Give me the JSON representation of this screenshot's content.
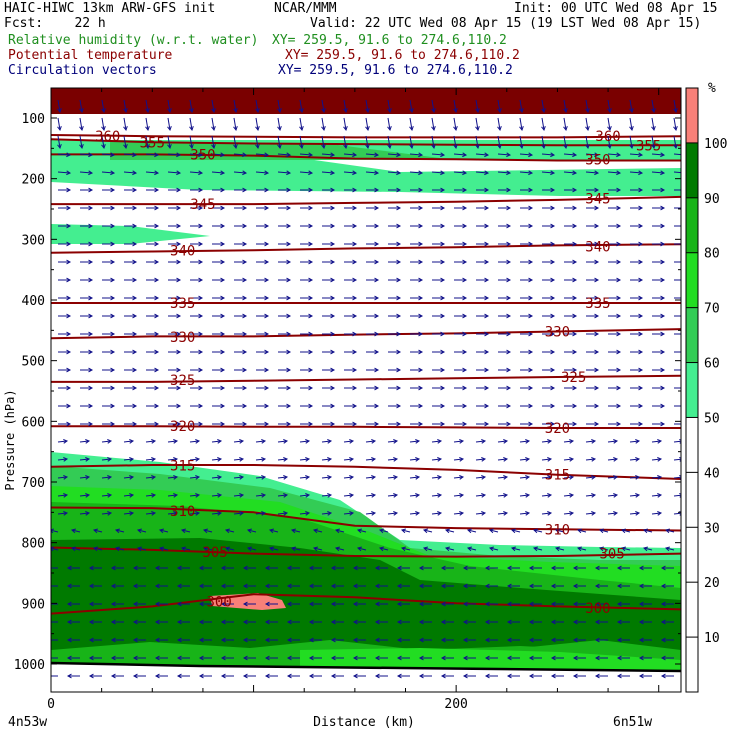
{
  "header": {
    "line1_left": "HAIC-HIWC 13km ARW-GFS init",
    "line1_center": "NCAR/MMM",
    "line1_right": "Init: 00 UTC Wed 08 Apr 15",
    "line2_left": "Fcst:    22 h",
    "line2_right": "Valid: 22 UTC Wed 08 Apr 15 (19 LST Wed 08 Apr 15)",
    "field1": "Relative humidity (w.r.t. water)",
    "field1_xy": "XY= 259.5, 91.6 to 274.6,110.2",
    "field2": "Potential temperature",
    "field2_xy": "XY= 259.5, 91.6 to 274.6,110.2",
    "field3": "Circulation vectors",
    "field3_xy": "XY= 259.5, 91.6 to 274.6,110.2",
    "field1_color": "#1f8f1f",
    "field2_color": "#8b0000",
    "field3_color": "#00007a"
  },
  "chart_data": {
    "type": "contour cross-section",
    "xlabel": "Distance (km)",
    "ylabel": "Pressure (hPa)",
    "xlim": [
      0,
      311
    ],
    "ylim": [
      1050,
      50
    ],
    "x_ticks": [
      0,
      200
    ],
    "y_ticks": [
      100,
      200,
      300,
      400,
      500,
      600,
      700,
      800,
      900,
      1000
    ],
    "x_end_labels": [
      "4n53w",
      "6n51w"
    ],
    "colorbar": {
      "unit": "%",
      "ticks": [
        10,
        20,
        30,
        40,
        50,
        60,
        70,
        80,
        90,
        100
      ],
      "bands": [
        {
          "from": 50,
          "to": 60,
          "color": "#44ee90"
        },
        {
          "from": 60,
          "to": 70,
          "color": "#33cc55"
        },
        {
          "from": 70,
          "to": 80,
          "color": "#22dd22"
        },
        {
          "from": 80,
          "to": 90,
          "color": "#18b418"
        },
        {
          "from": 90,
          "to": 100,
          "color": "#007a00"
        },
        {
          "from": 100,
          "to": 110,
          "color": "#f88078"
        }
      ]
    },
    "theta_contours": [
      {
        "label": "300",
        "points": [
          [
            0,
            917
          ],
          [
            50,
            905
          ],
          [
            100,
            885
          ],
          [
            150,
            890
          ],
          [
            200,
            900
          ],
          [
            250,
            905
          ],
          [
            311,
            910
          ]
        ],
        "label_at": [
          [
            83,
            897
          ],
          [
            270,
            908
          ]
        ]
      },
      {
        "label": "305",
        "points": [
          [
            0,
            808
          ],
          [
            50,
            812
          ],
          [
            100,
            818
          ],
          [
            150,
            822
          ],
          [
            200,
            823
          ],
          [
            250,
            822
          ],
          [
            311,
            818
          ]
        ],
        "label_at": [
          [
            81,
            815
          ],
          [
            277,
            818
          ]
        ]
      },
      {
        "label": "310",
        "points": [
          [
            0,
            742
          ],
          [
            50,
            743
          ],
          [
            100,
            750
          ],
          [
            150,
            772
          ],
          [
            200,
            776
          ],
          [
            250,
            778
          ],
          [
            311,
            780
          ]
        ],
        "label_at": [
          [
            65,
            748
          ],
          [
            250,
            778
          ]
        ]
      },
      {
        "label": "315",
        "points": [
          [
            0,
            675
          ],
          [
            50,
            672
          ],
          [
            100,
            672
          ],
          [
            150,
            675
          ],
          [
            200,
            680
          ],
          [
            250,
            688
          ],
          [
            311,
            695
          ]
        ],
        "label_at": [
          [
            65,
            673
          ],
          [
            250,
            688
          ]
        ]
      },
      {
        "label": "320",
        "points": [
          [
            0,
            608
          ],
          [
            50,
            608
          ],
          [
            100,
            609
          ],
          [
            150,
            609
          ],
          [
            200,
            610
          ],
          [
            250,
            611
          ],
          [
            311,
            611
          ]
        ],
        "label_at": [
          [
            65,
            608
          ],
          [
            250,
            611
          ]
        ]
      },
      {
        "label": "325",
        "points": [
          [
            0,
            535
          ],
          [
            50,
            535
          ],
          [
            100,
            533
          ],
          [
            150,
            531
          ],
          [
            200,
            529
          ],
          [
            250,
            527
          ],
          [
            311,
            525
          ]
        ],
        "label_at": [
          [
            65,
            532
          ],
          [
            258,
            527
          ]
        ]
      },
      {
        "label": "330",
        "points": [
          [
            0,
            463
          ],
          [
            50,
            460
          ],
          [
            100,
            460
          ],
          [
            150,
            457
          ],
          [
            200,
            455
          ],
          [
            250,
            452
          ],
          [
            311,
            448
          ]
        ],
        "label_at": [
          [
            65,
            461
          ],
          [
            250,
            452
          ]
        ]
      },
      {
        "label": "335",
        "points": [
          [
            0,
            405
          ],
          [
            50,
            405
          ],
          [
            100,
            405
          ],
          [
            150,
            405
          ],
          [
            200,
            405
          ],
          [
            250,
            405
          ],
          [
            311,
            405
          ]
        ],
        "label_at": [
          [
            65,
            405
          ],
          [
            270,
            405
          ]
        ]
      },
      {
        "label": "340",
        "points": [
          [
            0,
            322
          ],
          [
            50,
            320
          ],
          [
            100,
            318
          ],
          [
            150,
            315
          ],
          [
            200,
            313
          ],
          [
            250,
            310
          ],
          [
            311,
            308
          ]
        ],
        "label_at": [
          [
            65,
            318
          ],
          [
            270,
            312
          ]
        ]
      },
      {
        "label": "345",
        "points": [
          [
            0,
            242
          ],
          [
            50,
            242
          ],
          [
            100,
            242
          ],
          [
            150,
            240
          ],
          [
            200,
            238
          ],
          [
            250,
            235
          ],
          [
            311,
            230
          ]
        ],
        "label_at": [
          [
            75,
            242
          ],
          [
            270,
            233
          ]
        ]
      },
      {
        "label": "350",
        "points": [
          [
            0,
            160
          ],
          [
            50,
            160
          ],
          [
            100,
            162
          ],
          [
            150,
            167
          ],
          [
            200,
            168
          ],
          [
            250,
            170
          ],
          [
            311,
            170
          ]
        ],
        "label_at": [
          [
            75,
            160
          ],
          [
            270,
            168
          ]
        ]
      },
      {
        "label": "355",
        "points": [
          [
            0,
            135
          ],
          [
            50,
            140
          ],
          [
            100,
            142
          ],
          [
            150,
            143
          ],
          [
            200,
            144
          ],
          [
            250,
            145
          ],
          [
            311,
            145
          ]
        ],
        "label_at": [
          [
            50,
            140
          ],
          [
            295,
            145
          ]
        ]
      },
      {
        "label": "360",
        "points": [
          [
            0,
            128
          ],
          [
            50,
            130
          ],
          [
            100,
            131
          ],
          [
            150,
            132
          ],
          [
            200,
            132
          ],
          [
            250,
            132
          ],
          [
            311,
            130
          ]
        ],
        "label_at": [
          [
            28,
            130
          ],
          [
            275,
            130
          ]
        ]
      }
    ]
  }
}
